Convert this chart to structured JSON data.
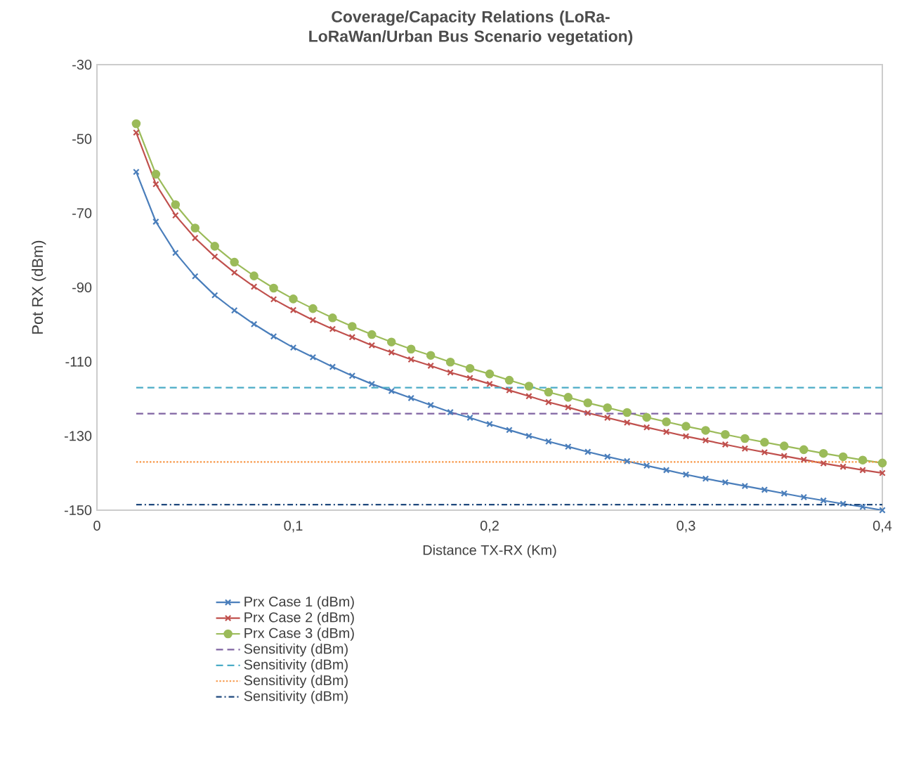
{
  "chart_data": {
    "type": "line",
    "title": "Coverage/Capacity Relations (LoRa-LoRaWan/Urban Bus Scenario vegetation)",
    "xlabel": "Distance TX-RX (Km)",
    "ylabel": "Pot RX (dBm)",
    "x": [
      0.02,
      0.03,
      0.04,
      0.05,
      0.06,
      0.07,
      0.08,
      0.09,
      0.1,
      0.11,
      0.12,
      0.13,
      0.14,
      0.15,
      0.16,
      0.17,
      0.18,
      0.19,
      0.2,
      0.21,
      0.22,
      0.23,
      0.24,
      0.25,
      0.26,
      0.27,
      0.28,
      0.29,
      0.3,
      0.31,
      0.32,
      0.33,
      0.34,
      0.35,
      0.36,
      0.37,
      0.38,
      0.39,
      0.4
    ],
    "series": [
      {
        "name": "Prx Case 1 (dBm)",
        "color": "#4a7ebb",
        "marker": "cross",
        "line_style": "solid",
        "values": [
          -58.9,
          -72.3,
          -80.7,
          -87.0,
          -92.1,
          -96.2,
          -99.9,
          -103.2,
          -106.2,
          -108.8,
          -111.4,
          -113.8,
          -116.0,
          -117.9,
          -119.8,
          -121.7,
          -123.6,
          -125.1,
          -126.8,
          -128.4,
          -130.0,
          -131.5,
          -132.9,
          -134.3,
          -135.6,
          -136.8,
          -138.0,
          -139.2,
          -140.4,
          -141.5,
          -142.5,
          -143.5,
          -144.5,
          -145.5,
          -146.5,
          -147.4,
          -148.3,
          -149.1,
          -150.0
        ]
      },
      {
        "name": "Prx Case 2 (dBm)",
        "color": "#c0504d",
        "marker": "cross",
        "line_style": "solid",
        "values": [
          -48.3,
          -62.2,
          -70.6,
          -76.7,
          -81.7,
          -86.0,
          -89.8,
          -93.2,
          -96.1,
          -98.8,
          -101.2,
          -103.4,
          -105.6,
          -107.5,
          -109.4,
          -111.1,
          -112.9,
          -114.4,
          -116.0,
          -117.7,
          -119.3,
          -120.9,
          -122.3,
          -123.8,
          -125.1,
          -126.4,
          -127.7,
          -128.9,
          -130.1,
          -131.2,
          -132.3,
          -133.4,
          -134.4,
          -135.4,
          -136.4,
          -137.4,
          -138.3,
          -139.2,
          -140.0
        ]
      },
      {
        "name": "Prx Case 3 (dBm)",
        "color": "#9bbb59",
        "marker": "circle",
        "line_style": "solid",
        "values": [
          -45.9,
          -59.5,
          -67.7,
          -74.0,
          -78.9,
          -83.2,
          -86.9,
          -90.2,
          -93.1,
          -95.7,
          -98.2,
          -100.5,
          -102.7,
          -104.7,
          -106.6,
          -108.3,
          -110.1,
          -111.8,
          -113.3,
          -115.0,
          -116.6,
          -118.2,
          -119.6,
          -121.1,
          -122.4,
          -123.7,
          -125.0,
          -126.2,
          -127.4,
          -128.5,
          -129.6,
          -130.7,
          -131.7,
          -132.7,
          -133.7,
          -134.7,
          -135.6,
          -136.5,
          -137.3
        ]
      },
      {
        "name": "Sensitivity (dBm)",
        "color": "#8064a2",
        "marker": "none",
        "line_style": "dashed",
        "values": [
          -124,
          -124,
          -124,
          -124,
          -124,
          -124,
          -124,
          -124,
          -124,
          -124,
          -124,
          -124,
          -124,
          -124,
          -124,
          -124,
          -124,
          -124,
          -124,
          -124,
          -124,
          -124,
          -124,
          -124,
          -124,
          -124,
          -124,
          -124,
          -124,
          -124,
          -124,
          -124,
          -124,
          -124,
          -124,
          -124,
          -124,
          -124,
          -124
        ]
      },
      {
        "name": "Sensitivity (dBm)",
        "color": "#4bacc6",
        "marker": "none",
        "line_style": "dashed",
        "values": [
          -117,
          -117,
          -117,
          -117,
          -117,
          -117,
          -117,
          -117,
          -117,
          -117,
          -117,
          -117,
          -117,
          -117,
          -117,
          -117,
          -117,
          -117,
          -117,
          -117,
          -117,
          -117,
          -117,
          -117,
          -117,
          -117,
          -117,
          -117,
          -117,
          -117,
          -117,
          -117,
          -117,
          -117,
          -117,
          -117,
          -117,
          -117,
          -117
        ]
      },
      {
        "name": "Sensitivity (dBm)",
        "color": "#f79646",
        "marker": "none",
        "line_style": "dotted",
        "values": [
          -137,
          -137,
          -137,
          -137,
          -137,
          -137,
          -137,
          -137,
          -137,
          -137,
          -137,
          -137,
          -137,
          -137,
          -137,
          -137,
          -137,
          -137,
          -137,
          -137,
          -137,
          -137,
          -137,
          -137,
          -137,
          -137,
          -137,
          -137,
          -137,
          -137,
          -137,
          -137,
          -137,
          -137,
          -137,
          -137,
          -137,
          -137,
          -137
        ]
      },
      {
        "name": "Sensitivity (dBm)",
        "color": "#1f497d",
        "marker": "none",
        "line_style": "dashdot",
        "values": [
          -148.5,
          -148.5,
          -148.5,
          -148.5,
          -148.5,
          -148.5,
          -148.5,
          -148.5,
          -148.5,
          -148.5,
          -148.5,
          -148.5,
          -148.5,
          -148.5,
          -148.5,
          -148.5,
          -148.5,
          -148.5,
          -148.5,
          -148.5,
          -148.5,
          -148.5,
          -148.5,
          -148.5,
          -148.5,
          -148.5,
          -148.5,
          -148.5,
          -148.5,
          -148.5,
          -148.5,
          -148.5,
          -148.5,
          -148.5,
          -148.5,
          -148.5,
          -148.5,
          -148.5,
          -148.5
        ]
      }
    ],
    "xlim": [
      0,
      0.4
    ],
    "xticks": [
      0,
      {
        "value": 0.1,
        "label": "0,1"
      },
      {
        "value": 0.2,
        "label": "0,2"
      },
      {
        "value": 0.3,
        "label": "0,3"
      },
      {
        "value": 0.4,
        "label": "0,4"
      }
    ],
    "ylim": [
      -150,
      -30
    ],
    "yticks": [
      -30,
      -50,
      -70,
      -90,
      -110,
      -130,
      -150
    ],
    "grid": false,
    "legend": "bottom"
  }
}
